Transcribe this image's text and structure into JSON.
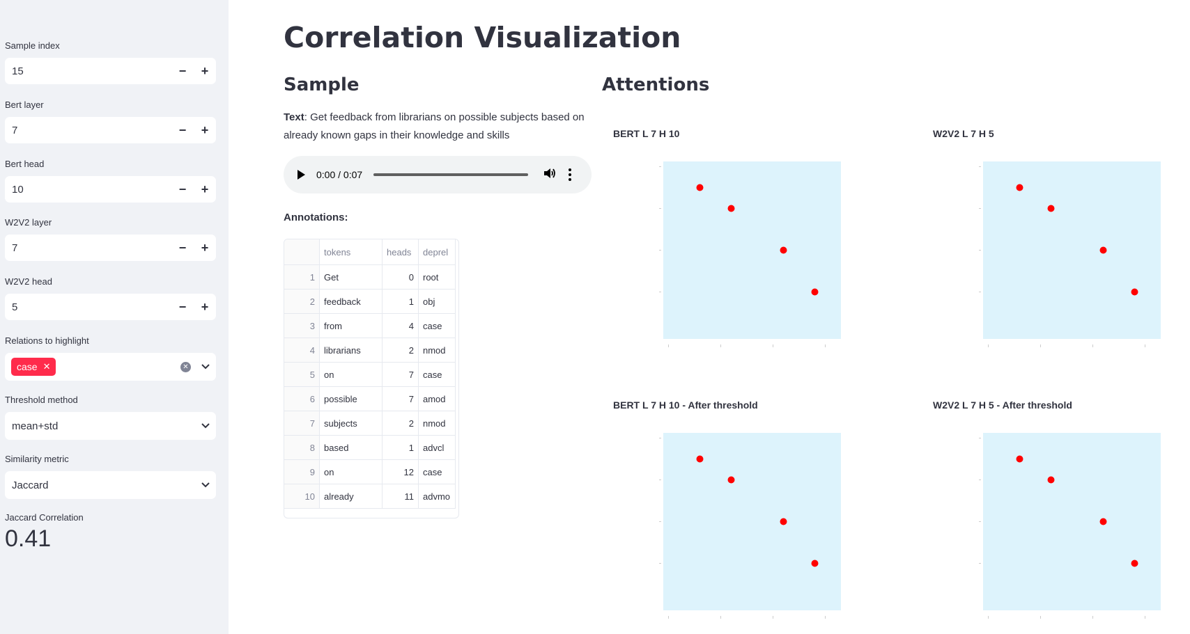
{
  "sidebar": {
    "sample_index": {
      "label": "Sample index",
      "value": "15"
    },
    "bert_layer": {
      "label": "Bert layer",
      "value": "7"
    },
    "bert_head": {
      "label": "Bert head",
      "value": "10"
    },
    "w2v2_layer": {
      "label": "W2V2 layer",
      "value": "7"
    },
    "w2v2_head": {
      "label": "W2V2 head",
      "value": "5"
    },
    "relations": {
      "label": "Relations to highlight",
      "tags": [
        "case"
      ]
    },
    "threshold": {
      "label": "Threshold method",
      "value": "mean+std"
    },
    "similarity": {
      "label": "Similarity metric",
      "value": "Jaccard"
    },
    "metric": {
      "label": "Jaccard Correlation",
      "value": "0.41"
    },
    "minus": "−",
    "plus": "+"
  },
  "main": {
    "title": "Correlation Visualization",
    "sample_heading": "Sample",
    "attentions_heading": "Attentions",
    "text_label": "Text",
    "text_value": ": Get feedback from librarians on possible subjects based on already known gaps in their knowledge and skills",
    "audio": {
      "time": "0:00 / 0:07",
      "progress": 0
    },
    "annotations_label": "Annotations:",
    "table": {
      "columns": [
        "tokens",
        "heads",
        "deprel"
      ],
      "rows": [
        {
          "i": "1",
          "tokens": "Get",
          "heads": "0",
          "deprel": "root"
        },
        {
          "i": "2",
          "tokens": "feedback",
          "heads": "1",
          "deprel": "obj"
        },
        {
          "i": "3",
          "tokens": "from",
          "heads": "4",
          "deprel": "case"
        },
        {
          "i": "4",
          "tokens": "librarians",
          "heads": "2",
          "deprel": "nmod"
        },
        {
          "i": "5",
          "tokens": "on",
          "heads": "7",
          "deprel": "case"
        },
        {
          "i": "6",
          "tokens": "possible",
          "heads": "7",
          "deprel": "amod"
        },
        {
          "i": "7",
          "tokens": "subjects",
          "heads": "2",
          "deprel": "nmod"
        },
        {
          "i": "8",
          "tokens": "based",
          "heads": "1",
          "deprel": "advcl"
        },
        {
          "i": "9",
          "tokens": "on",
          "heads": "12",
          "deprel": "case"
        },
        {
          "i": "10",
          "tokens": "already",
          "heads": "11",
          "deprel": "advmo"
        }
      ]
    },
    "plots": {
      "bert": "BERT L 7 H 10",
      "w2v2": "W2V2 L 7 H 5",
      "bert_thr": "BERT L 7 H 10 - After threshold",
      "w2v2_thr": "W2V2 L 7 H 5 - After threshold"
    }
  },
  "chart_data": [
    {
      "type": "heatmap",
      "title": "BERT L 7 H 10",
      "grid": 17,
      "colorscale": [
        "#ddf3fc",
        "#0a3e87"
      ],
      "cells": [
        [
          2,
          0,
          0.6
        ],
        [
          3,
          1,
          0.9
        ],
        [
          3,
          2,
          0.5
        ],
        [
          6,
          3,
          0.6
        ],
        [
          6,
          4,
          0.75
        ],
        [
          8,
          5,
          0.15
        ],
        [
          9,
          5,
          0.25
        ],
        [
          11,
          7,
          0.45
        ],
        [
          11,
          8,
          0.95
        ],
        [
          12,
          9,
          0.5
        ],
        [
          14,
          10,
          0.45
        ],
        [
          14,
          11,
          0.8
        ],
        [
          15,
          12,
          0.3
        ],
        [
          14,
          15,
          0.35
        ],
        [
          16,
          15,
          0.6
        ],
        [
          3,
          14,
          0.2
        ],
        [
          0,
          1,
          0.15
        ],
        [
          1,
          0,
          0.1
        ],
        [
          16,
          7,
          0.25
        ],
        [
          16,
          8,
          0.2
        ],
        [
          13,
          7,
          0.15
        ]
      ],
      "highlights": [
        [
          3,
          2
        ],
        [
          6,
          4
        ],
        [
          11,
          8
        ],
        [
          14,
          12
        ]
      ]
    },
    {
      "type": "heatmap",
      "title": "W2V2 L 7 H 5",
      "grid": 17,
      "colorscale": [
        "#ddf3fc",
        "#0a3e87"
      ],
      "cells": [
        [
          1,
          0,
          0.45
        ],
        [
          2,
          0,
          0.25
        ],
        [
          3,
          1,
          0.4
        ],
        [
          3,
          2,
          0.5
        ],
        [
          6,
          3,
          0.55
        ],
        [
          6,
          4,
          0.75
        ],
        [
          6,
          5,
          0.6
        ],
        [
          5,
          4,
          0.3
        ],
        [
          3,
          7,
          0.3
        ],
        [
          9,
          7,
          0.3
        ],
        [
          10,
          7,
          0.3
        ],
        [
          11,
          7,
          0.3
        ],
        [
          11,
          8,
          0.4
        ],
        [
          10,
          8,
          0.3
        ],
        [
          11,
          9,
          0.45
        ],
        [
          12,
          9,
          0.2
        ],
        [
          14,
          10,
          0.2
        ],
        [
          14,
          11,
          0.5
        ],
        [
          14,
          12,
          0.6
        ],
        [
          16,
          12,
          0.35
        ],
        [
          16,
          13,
          0.45
        ],
        [
          16,
          14,
          0.35
        ],
        [
          15,
          12,
          0.2
        ]
      ],
      "highlights": [
        [
          3,
          2
        ],
        [
          6,
          4
        ],
        [
          11,
          8
        ],
        [
          14,
          12
        ]
      ]
    },
    {
      "type": "heatmap",
      "title": "BERT L 7 H 10 - After threshold",
      "grid": 17,
      "colorscale": [
        "#ddf3fc",
        "#0a3e87"
      ],
      "cells": [
        [
          2,
          0,
          1
        ],
        [
          3,
          2,
          1
        ],
        [
          3,
          3,
          1
        ],
        [
          6,
          4,
          1
        ],
        [
          6,
          5,
          1
        ],
        [
          11,
          8,
          1
        ],
        [
          10,
          9,
          1
        ],
        [
          11,
          10,
          1
        ],
        [
          14,
          12,
          1
        ],
        [
          14,
          15,
          1
        ],
        [
          16,
          15,
          1
        ]
      ],
      "highlights": [
        [
          3,
          2
        ],
        [
          6,
          4
        ],
        [
          11,
          8
        ],
        [
          14,
          12
        ]
      ]
    },
    {
      "type": "heatmap",
      "title": "W2V2 L 7 H 5 - After threshold",
      "grid": 17,
      "colorscale": [
        "#ddf3fc",
        "#0a3e87"
      ],
      "cells": [
        [
          1,
          0,
          1
        ],
        [
          2,
          0,
          1
        ],
        [
          3,
          1,
          1
        ],
        [
          3,
          2,
          1
        ],
        [
          6,
          3,
          1
        ],
        [
          6,
          4,
          1
        ],
        [
          6,
          5,
          1
        ],
        [
          9,
          8,
          1
        ],
        [
          10,
          8,
          1
        ],
        [
          11,
          8,
          1
        ],
        [
          10,
          9,
          1
        ],
        [
          11,
          9,
          1
        ],
        [
          11,
          10,
          1
        ],
        [
          14,
          11,
          1
        ],
        [
          14,
          12,
          1
        ],
        [
          14,
          13,
          1
        ],
        [
          16,
          12,
          1
        ],
        [
          16,
          13,
          1
        ],
        [
          16,
          14,
          1
        ],
        [
          16,
          15,
          1
        ]
      ],
      "highlights": [
        [
          3,
          2
        ],
        [
          6,
          4
        ],
        [
          11,
          8
        ],
        [
          14,
          12
        ]
      ]
    }
  ]
}
